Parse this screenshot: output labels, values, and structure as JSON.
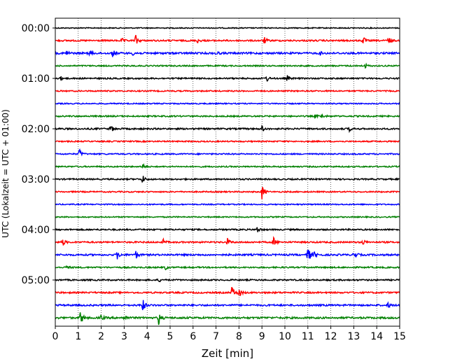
{
  "chart_data": {
    "type": "line",
    "xlabel": "Zeit  [min]",
    "ylabel": "UTC (Lokalzeit = UTC + 01:00)",
    "xlim": [
      0,
      15
    ],
    "xticks": [
      0,
      1,
      2,
      3,
      4,
      5,
      6,
      7,
      8,
      9,
      10,
      11,
      12,
      13,
      14,
      15
    ],
    "xtick_labels": [
      "0",
      "1",
      "2",
      "3",
      "4",
      "5",
      "6",
      "7",
      "8",
      "9",
      "10",
      "11",
      "12",
      "13",
      "14",
      "15"
    ],
    "ytick_labels": [
      "00:00",
      "01:00",
      "02:00",
      "03:00",
      "04:00",
      "05:00"
    ],
    "ytick_rows": [
      0,
      4,
      8,
      12,
      16,
      20
    ],
    "row_minutes": 15,
    "grid": "vertical-dotted",
    "series_colors": [
      "#000000",
      "#ff0000",
      "#0000ff",
      "#008000"
    ],
    "rows": [
      {
        "time": "00:00",
        "color": "#000000",
        "noise": 0.7,
        "events": []
      },
      {
        "time": "00:15",
        "color": "#ff0000",
        "noise": 1.1,
        "events": [
          [
            3.5,
            8
          ],
          [
            9.1,
            5
          ],
          [
            13.4,
            6
          ],
          [
            14.5,
            6
          ],
          [
            6.2,
            3
          ],
          [
            2.9,
            3
          ]
        ]
      },
      {
        "time": "00:30",
        "color": "#0000ff",
        "noise": 1.3,
        "events": [
          [
            0.5,
            4
          ],
          [
            1.5,
            4
          ],
          [
            2.5,
            5
          ],
          [
            3.4,
            4
          ],
          [
            7.0,
            3
          ],
          [
            11.5,
            3
          ]
        ]
      },
      {
        "time": "00:45",
        "color": "#008000",
        "noise": 0.9,
        "events": [
          [
            13.5,
            3
          ],
          [
            15.0,
            3
          ]
        ]
      },
      {
        "time": "01:00",
        "color": "#000000",
        "noise": 1.0,
        "events": [
          [
            0.2,
            4
          ],
          [
            9.2,
            5
          ],
          [
            10.1,
            4
          ]
        ]
      },
      {
        "time": "01:15",
        "color": "#ff0000",
        "noise": 0.9,
        "events": []
      },
      {
        "time": "01:30",
        "color": "#0000ff",
        "noise": 0.8,
        "events": []
      },
      {
        "time": "01:45",
        "color": "#008000",
        "noise": 1.0,
        "events": [
          [
            11.3,
            3
          ],
          [
            11.6,
            3
          ]
        ]
      },
      {
        "time": "02:00",
        "color": "#000000",
        "noise": 1.1,
        "events": [
          [
            2.4,
            7
          ],
          [
            9.0,
            4
          ],
          [
            12.8,
            3
          ]
        ]
      },
      {
        "time": "02:15",
        "color": "#ff0000",
        "noise": 0.9,
        "events": []
      },
      {
        "time": "02:30",
        "color": "#0000ff",
        "noise": 0.9,
        "events": [
          [
            1.05,
            7
          ]
        ]
      },
      {
        "time": "02:45",
        "color": "#008000",
        "noise": 0.9,
        "events": [
          [
            3.8,
            5
          ]
        ]
      },
      {
        "time": "03:00",
        "color": "#000000",
        "noise": 1.0,
        "events": [
          [
            3.8,
            6
          ]
        ]
      },
      {
        "time": "03:15",
        "color": "#ff0000",
        "noise": 0.9,
        "events": [
          [
            9.0,
            13
          ]
        ]
      },
      {
        "time": "03:30",
        "color": "#0000ff",
        "noise": 0.8,
        "events": []
      },
      {
        "time": "03:45",
        "color": "#008000",
        "noise": 0.8,
        "events": []
      },
      {
        "time": "04:00",
        "color": "#000000",
        "noise": 1.0,
        "events": [
          [
            8.8,
            5
          ],
          [
            15.0,
            4
          ]
        ]
      },
      {
        "time": "04:15",
        "color": "#ff0000",
        "noise": 1.1,
        "events": [
          [
            0.3,
            7
          ],
          [
            4.7,
            4
          ],
          [
            7.5,
            5
          ],
          [
            9.5,
            7
          ],
          [
            13.4,
            4
          ]
        ]
      },
      {
        "time": "04:30",
        "color": "#0000ff",
        "noise": 1.2,
        "events": [
          [
            2.7,
            6
          ],
          [
            3.5,
            6
          ],
          [
            11.0,
            15
          ],
          [
            11.3,
            6
          ],
          [
            13.0,
            8
          ]
        ]
      },
      {
        "time": "04:45",
        "color": "#008000",
        "noise": 1.0,
        "events": [
          [
            0.5,
            3
          ],
          [
            4.8,
            3
          ]
        ]
      },
      {
        "time": "05:00",
        "color": "#000000",
        "noise": 1.0,
        "events": [
          [
            4.5,
            3
          ]
        ]
      },
      {
        "time": "05:15",
        "color": "#ff0000",
        "noise": 1.1,
        "events": [
          [
            7.7,
            10
          ],
          [
            8.0,
            8
          ]
        ]
      },
      {
        "time": "05:30",
        "color": "#0000ff",
        "noise": 1.2,
        "events": [
          [
            3.8,
            11
          ],
          [
            14.5,
            4
          ],
          [
            15.0,
            4
          ]
        ]
      },
      {
        "time": "05:45",
        "color": "#008000",
        "noise": 1.3,
        "events": [
          [
            1.1,
            11
          ],
          [
            4.5,
            10
          ],
          [
            2.0,
            4
          ],
          [
            3.0,
            4
          ]
        ]
      }
    ]
  }
}
